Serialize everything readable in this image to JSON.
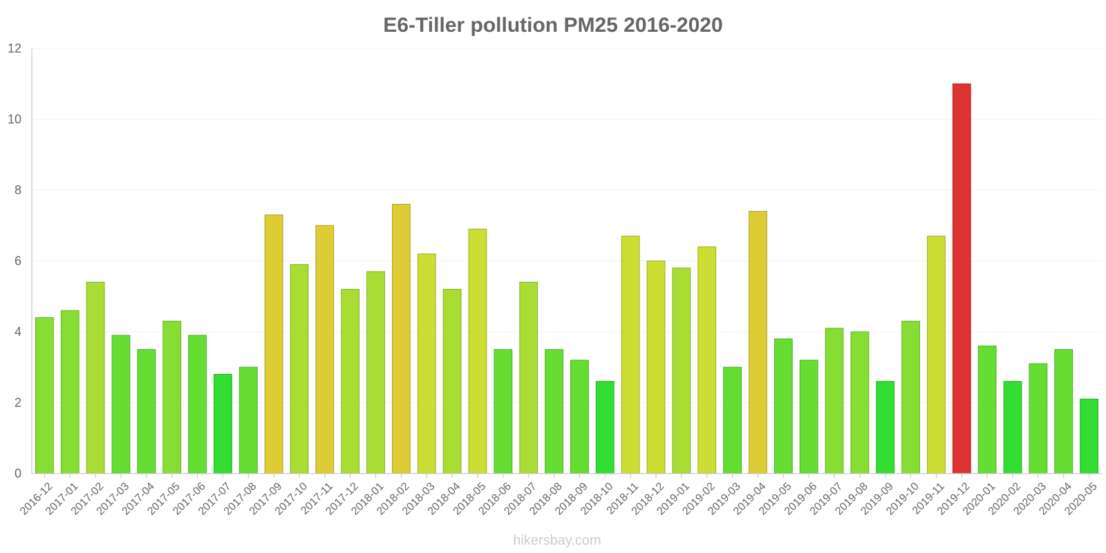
{
  "chart_data": {
    "type": "bar",
    "title": "E6-Tiller pollution PM25 2016-2020",
    "xlabel": "",
    "ylabel": "",
    "ylim": [
      0,
      12
    ],
    "yticks": [
      "0",
      "2",
      "4",
      "6",
      "8",
      "10",
      "12"
    ],
    "grid": true,
    "legend": "none",
    "categories": [
      "2016-12",
      "2017-01",
      "2017-02",
      "2017-03",
      "2017-04",
      "2017-05",
      "2017-06",
      "2017-07",
      "2017-08",
      "2017-09",
      "2017-10",
      "2017-11",
      "2017-12",
      "2018-01",
      "2018-02",
      "2018-03",
      "2018-04",
      "2018-05",
      "2018-06",
      "2018-07",
      "2018-08",
      "2018-09",
      "2018-10",
      "2018-11",
      "2018-12",
      "2019-01",
      "2019-02",
      "2019-03",
      "2019-04",
      "2019-05",
      "2019-06",
      "2019-07",
      "2019-08",
      "2019-09",
      "2019-10",
      "2019-11",
      "2019-12",
      "2020-01",
      "2020-02",
      "2020-03",
      "2020-04",
      "2020-05"
    ],
    "values": [
      4.4,
      4.6,
      5.4,
      3.9,
      3.5,
      4.3,
      3.9,
      2.8,
      3,
      7.3,
      5.9,
      7,
      5.2,
      5.7,
      7.6,
      6.2,
      5.2,
      6.9,
      3.5,
      5.4,
      3.5,
      3.2,
      2.6,
      6.7,
      6,
      5.8,
      6.4,
      3,
      7.4,
      3.8,
      3.2,
      4.1,
      4,
      2.6,
      4.3,
      6.7,
      11,
      3.6,
      2.6,
      3.1,
      3.5,
      2.1
    ],
    "colors": {
      "lt_3": "#33dd33",
      "3_4": "#66dd33",
      "4_5": "#88dd33",
      "5_6": "#aadd33",
      "6_7": "#ccdd33",
      "7_10": "#ddcc33",
      "gt_10": "#dd3333"
    }
  },
  "watermark": "hikersbay.com"
}
